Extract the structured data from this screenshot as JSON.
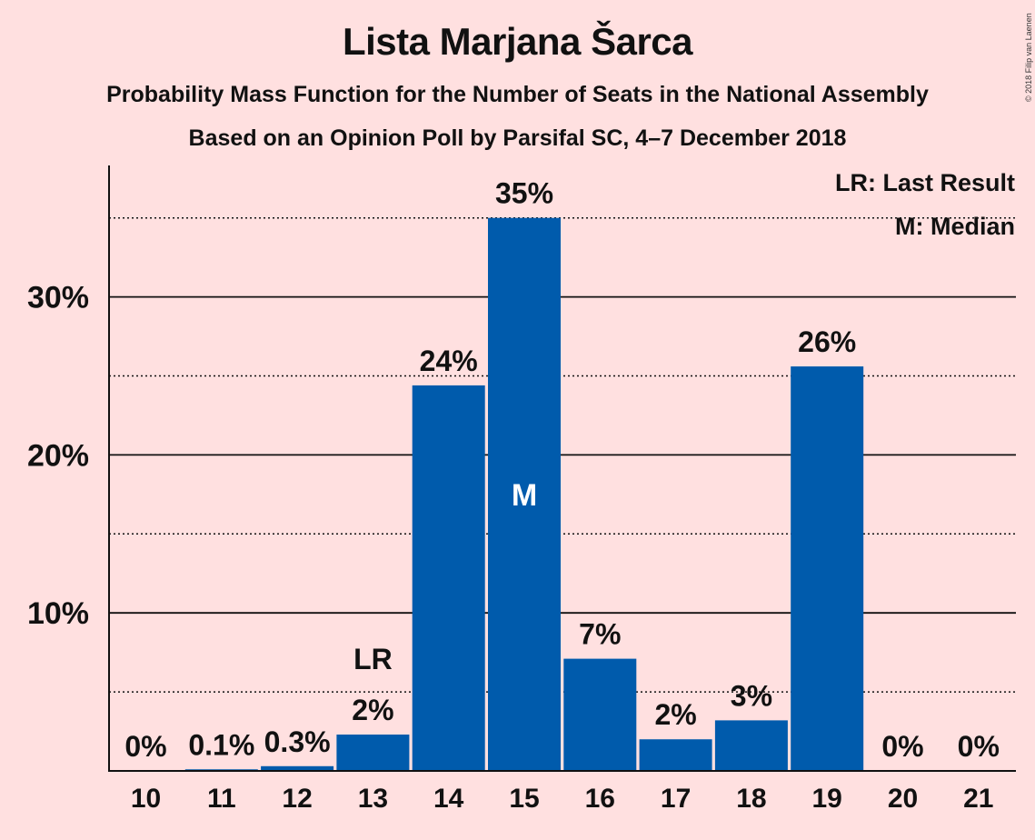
{
  "header": {
    "title": "Lista Marjana Šarca",
    "subtitle": "Probability Mass Function for the Number of Seats in the National Assembly",
    "source": "Based on an Opinion Poll by Parsifal SC, 4–7 December 2018",
    "copyright": "© 2018 Filip van Laenen"
  },
  "colors": {
    "background": "#FFE0E0",
    "bar": "#005BAC",
    "text": "#111111"
  },
  "chart_data": {
    "type": "bar",
    "title": "Lista Marjana Šarca",
    "xlabel": "",
    "ylabel": "",
    "categories": [
      "10",
      "11",
      "12",
      "13",
      "14",
      "15",
      "16",
      "17",
      "18",
      "19",
      "20",
      "21"
    ],
    "values": [
      0,
      0.1,
      0.3,
      2.3,
      24.4,
      35.0,
      7.1,
      2.0,
      3.2,
      25.6,
      0,
      0
    ],
    "value_labels": [
      "0%",
      "0.1%",
      "0.3%",
      "2%",
      "24%",
      "35%",
      "7%",
      "2%",
      "3%",
      "26%",
      "0%",
      "0%"
    ],
    "ylim": [
      0,
      38
    ],
    "yticks": [
      10,
      20,
      30
    ],
    "ytick_labels": [
      "10%",
      "20%",
      "30%"
    ],
    "minor_gridlines": [
      5,
      15,
      25,
      35
    ],
    "last_result": {
      "category": "13",
      "label": "LR"
    },
    "median": {
      "category": "15",
      "label": "M"
    },
    "legend": [
      "LR: Last Result",
      "M: Median"
    ],
    "legend_position": "top-right"
  }
}
